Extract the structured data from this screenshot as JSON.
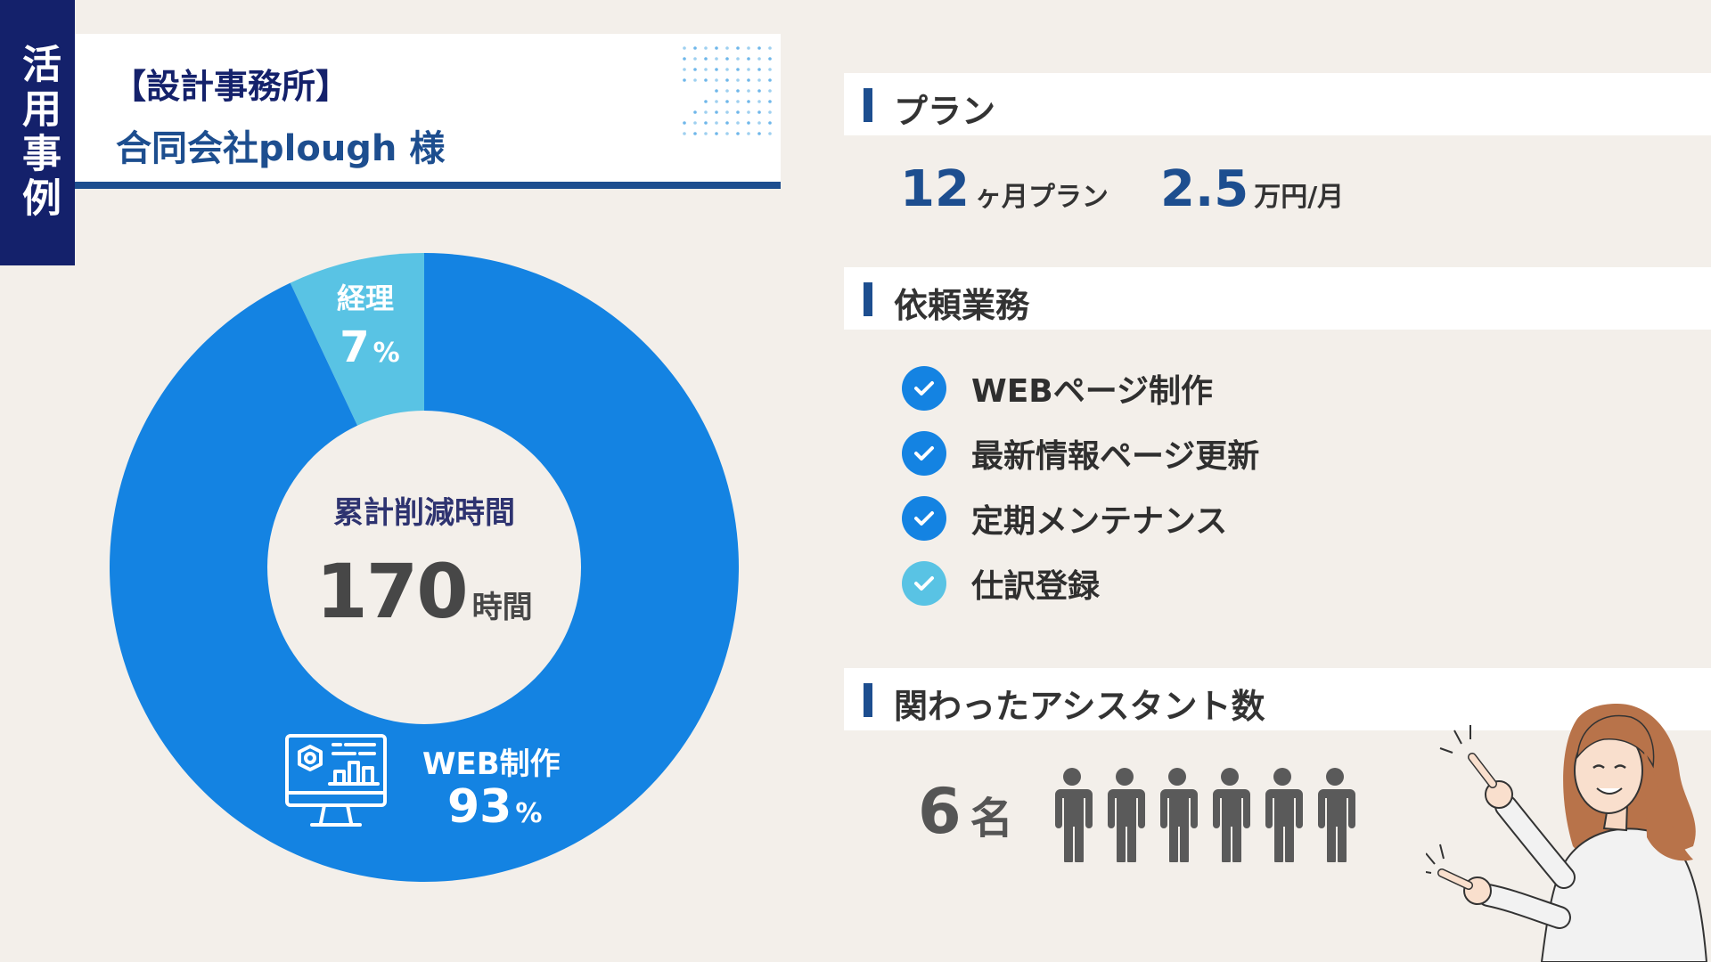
{
  "tag": "活用事例",
  "title": {
    "category": "【設計事務所】",
    "client": "合同会社plough 様"
  },
  "donut": {
    "center_label": "累計削減時間",
    "center_value": "170",
    "center_unit": "時間",
    "segments": [
      {
        "label": "経理",
        "value": "7",
        "unit": "%",
        "percent": 7,
        "color": "#59c3e4"
      },
      {
        "label": "WEB制作",
        "value": "93",
        "unit": "%",
        "percent": 93,
        "color": "#1483e2"
      }
    ]
  },
  "plan": {
    "heading": "プラン",
    "duration_num": "12",
    "duration_label": "ヶ月プラン",
    "price_num": "2.5",
    "price_label": "万円/月"
  },
  "tasks": {
    "heading": "依頼業務",
    "items": [
      {
        "label": "WEBページ制作",
        "color": "#1483e2"
      },
      {
        "label": "最新情報ページ更新",
        "color": "#1483e2"
      },
      {
        "label": "定期メンテナンス",
        "color": "#1483e2"
      },
      {
        "label": "仕訳登録",
        "color": "#59c3e4"
      }
    ]
  },
  "assistants": {
    "heading": "関わったアシスタント数",
    "count": "6",
    "unit": "名",
    "people": 6
  },
  "icons": [
    "check-icon",
    "person-icon",
    "monitor-chart-icon"
  ]
}
